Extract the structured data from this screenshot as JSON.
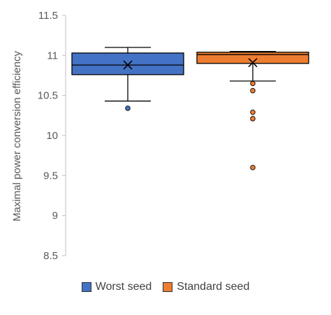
{
  "chart_data": {
    "type": "boxplot",
    "ylabel": "Maximal power conversion efficiency",
    "ylim": [
      8.5,
      11.5
    ],
    "yticks": [
      8.5,
      9,
      9.5,
      10,
      10.5,
      11,
      11.5
    ],
    "ytick_labels": [
      "8.5",
      "9",
      "9.5",
      "10",
      "10.5",
      "11",
      "11.5"
    ],
    "grid": false,
    "legend_position": "bottom",
    "series": [
      {
        "name": "Worst seed",
        "color": "#4472C4",
        "whisker_low": 10.43,
        "q1": 10.76,
        "median": 10.88,
        "q3": 11.03,
        "whisker_high": 11.1,
        "mean": 10.88,
        "outliers": [
          10.34
        ]
      },
      {
        "name": "Standard seed",
        "color": "#ED7D31",
        "whisker_low": 10.68,
        "q1": 10.9,
        "median": 11.01,
        "q3": 11.04,
        "whisker_high": 11.05,
        "mean": 10.91,
        "outliers": [
          10.65,
          10.56,
          10.29,
          10.21,
          9.6
        ]
      }
    ]
  }
}
